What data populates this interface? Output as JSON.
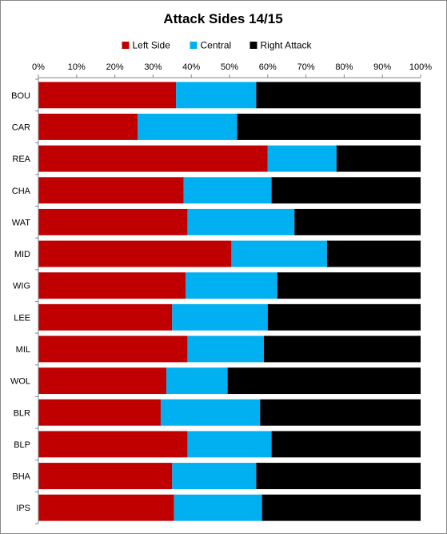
{
  "chart_data": {
    "type": "bar",
    "orientation": "horizontal",
    "stacked": true,
    "percent_stacked": true,
    "title": "Attack Sides 14/15",
    "xlabel": "",
    "ylabel": "",
    "xlim": [
      0,
      100
    ],
    "x_ticks": [
      "0%",
      "10%",
      "20%",
      "30%",
      "40%",
      "50%",
      "60%",
      "70%",
      "80%",
      "90%",
      "100%"
    ],
    "legend_position": "top",
    "grid": false,
    "categories": [
      "BOU",
      "CAR",
      "REA",
      "CHA",
      "WAT",
      "MID",
      "WIG",
      "LEE",
      "MIL",
      "WOL",
      "BLR",
      "BLP",
      "BHA",
      "IPS"
    ],
    "series": [
      {
        "name": "Left Side",
        "color": "#c00000",
        "values": [
          36,
          26,
          60,
          38,
          39,
          50.5,
          38.5,
          35,
          39,
          33.5,
          32,
          39,
          35,
          35.5
        ]
      },
      {
        "name": "Central",
        "color": "#00b0f0",
        "values": [
          21,
          26,
          18,
          23,
          28,
          25,
          24,
          25,
          20,
          16,
          26,
          22,
          22,
          23
        ]
      },
      {
        "name": "Right Attack",
        "color": "#000000",
        "values": [
          43,
          48,
          22,
          39,
          33,
          24.5,
          37.5,
          40,
          41,
          50.5,
          42,
          39,
          43,
          41.5
        ]
      }
    ]
  }
}
